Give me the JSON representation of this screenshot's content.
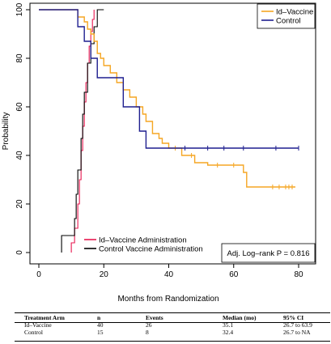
{
  "chart_data": {
    "type": "line",
    "xlabel": "Months from Randomization",
    "ylabel": "Probability",
    "xlim": [
      0,
      85
    ],
    "ylim": [
      0,
      100
    ],
    "x_ticks": [
      0,
      20,
      40,
      60,
      80
    ],
    "y_ticks": [
      0,
      20,
      40,
      60,
      80,
      100
    ],
    "legend_top": {
      "position": "top-right",
      "entries": [
        {
          "name": "Id–Vaccine",
          "color": "#f5a623"
        },
        {
          "name": "Control",
          "color": "#1f1f8f"
        }
      ]
    },
    "legend_bottom": {
      "position": "bottom-left",
      "entries": [
        {
          "name": "Id–Vaccine Administration",
          "color": "#e8174f"
        },
        {
          "name": "Control Vaccine Administration",
          "color": "#000000"
        }
      ]
    },
    "annotation": "Adj. Log–rank P = 0.816",
    "series": [
      {
        "name": "Id–Vaccine",
        "color": "#f5a623",
        "kind": "step",
        "points": [
          [
            0,
            100
          ],
          [
            12,
            100
          ],
          [
            12,
            97
          ],
          [
            14,
            97
          ],
          [
            14,
            95
          ],
          [
            15,
            95
          ],
          [
            15,
            92
          ],
          [
            16,
            92
          ],
          [
            16,
            90
          ],
          [
            17,
            90
          ],
          [
            17,
            87
          ],
          [
            18,
            87
          ],
          [
            18,
            82
          ],
          [
            19,
            82
          ],
          [
            19,
            80
          ],
          [
            20,
            80
          ],
          [
            20,
            77
          ],
          [
            22,
            77
          ],
          [
            22,
            74
          ],
          [
            24,
            74
          ],
          [
            24,
            70
          ],
          [
            26,
            70
          ],
          [
            26,
            67
          ],
          [
            28,
            67
          ],
          [
            28,
            64
          ],
          [
            30,
            64
          ],
          [
            30,
            60
          ],
          [
            32,
            60
          ],
          [
            32,
            57
          ],
          [
            33,
            57
          ],
          [
            33,
            54
          ],
          [
            35,
            54
          ],
          [
            35,
            49
          ],
          [
            37,
            49
          ],
          [
            37,
            47
          ],
          [
            38,
            47
          ],
          [
            38,
            45
          ],
          [
            40,
            45
          ],
          [
            40,
            43
          ],
          [
            44,
            43
          ],
          [
            44,
            40
          ],
          [
            48,
            40
          ],
          [
            48,
            37
          ],
          [
            52,
            37
          ],
          [
            52,
            36
          ],
          [
            63,
            36
          ],
          [
            63,
            33
          ],
          [
            64,
            33
          ],
          [
            64,
            27
          ],
          [
            79,
            27
          ]
        ],
        "censor_marks": [
          [
            42,
            43
          ],
          [
            47,
            40
          ],
          [
            55,
            36
          ],
          [
            60,
            36
          ],
          [
            72,
            27
          ],
          [
            74,
            27
          ],
          [
            76,
            27
          ],
          [
            77,
            27
          ],
          [
            78,
            27
          ]
        ]
      },
      {
        "name": "Control",
        "color": "#1f1f8f",
        "kind": "step",
        "points": [
          [
            0,
            100
          ],
          [
            12,
            100
          ],
          [
            12,
            93
          ],
          [
            14,
            93
          ],
          [
            14,
            87
          ],
          [
            16,
            87
          ],
          [
            16,
            80
          ],
          [
            18,
            80
          ],
          [
            18,
            72
          ],
          [
            26,
            72
          ],
          [
            26,
            60
          ],
          [
            31,
            60
          ],
          [
            31,
            50
          ],
          [
            33,
            50
          ],
          [
            33,
            43
          ],
          [
            80,
            43
          ]
        ],
        "censor_marks": [
          [
            45,
            43
          ],
          [
            52,
            43
          ],
          [
            57,
            43
          ],
          [
            63,
            43
          ],
          [
            73,
            43
          ],
          [
            80,
            43
          ]
        ]
      },
      {
        "name": "Id–Vaccine Administration",
        "color": "#e8174f",
        "kind": "step",
        "points": [
          [
            10,
            0
          ],
          [
            10,
            4
          ],
          [
            11,
            4
          ],
          [
            11,
            10
          ],
          [
            12,
            10
          ],
          [
            12,
            20
          ],
          [
            12.5,
            20
          ],
          [
            12.5,
            30
          ],
          [
            13,
            30
          ],
          [
            13,
            42
          ],
          [
            13.5,
            42
          ],
          [
            13.5,
            52
          ],
          [
            14,
            52
          ],
          [
            14,
            62
          ],
          [
            14.5,
            62
          ],
          [
            14.5,
            70
          ],
          [
            15,
            70
          ],
          [
            15,
            78
          ],
          [
            15.5,
            78
          ],
          [
            15.5,
            85
          ],
          [
            16,
            85
          ],
          [
            16,
            91
          ],
          [
            16.5,
            91
          ],
          [
            16.5,
            96
          ],
          [
            17,
            96
          ],
          [
            17,
            100
          ]
        ]
      },
      {
        "name": "Control Vaccine Administration",
        "color": "#000000",
        "kind": "step",
        "points": [
          [
            7,
            0
          ],
          [
            7,
            7
          ],
          [
            11,
            7
          ],
          [
            11,
            14
          ],
          [
            11.5,
            14
          ],
          [
            11.5,
            24
          ],
          [
            12,
            24
          ],
          [
            12,
            34
          ],
          [
            13,
            34
          ],
          [
            13,
            47
          ],
          [
            13.5,
            47
          ],
          [
            13.5,
            57
          ],
          [
            14,
            57
          ],
          [
            14,
            66
          ],
          [
            15,
            66
          ],
          [
            15,
            78
          ],
          [
            16,
            78
          ],
          [
            16,
            86
          ],
          [
            17,
            86
          ],
          [
            17,
            93
          ],
          [
            18,
            93
          ],
          [
            18,
            100
          ],
          [
            20,
            100
          ]
        ]
      }
    ]
  },
  "table": {
    "headers": [
      "Treatment Arm",
      "n",
      "Events",
      "Median (mo)",
      "95% CI"
    ],
    "rows": [
      [
        "Id–Vaccine",
        "40",
        "26",
        "35.1",
        "26.7 to 63.9"
      ],
      [
        "Control",
        "15",
        "8",
        "32.4",
        "26.7 to NA"
      ]
    ]
  }
}
